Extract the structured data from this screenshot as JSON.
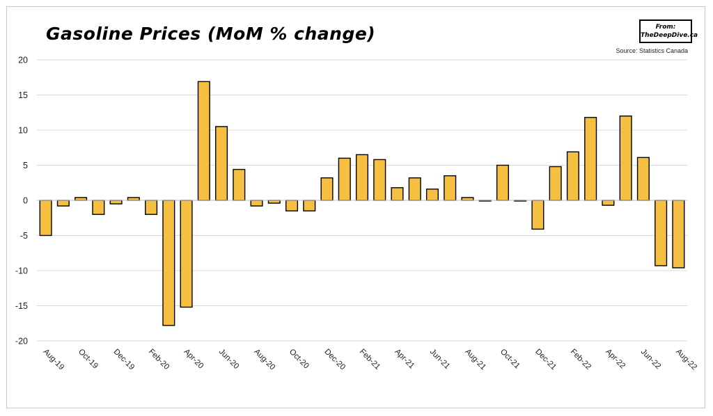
{
  "title": "Gasoline Prices (MoM % change)",
  "logo": {
    "line1": "From:",
    "line2": "TheDeepDive.ca"
  },
  "source": "Source: Statistics Canada",
  "colors": {
    "bar": "#f5bf42",
    "bar_stroke": "#000000",
    "grid": "#d9d9d9"
  },
  "chart_data": {
    "type": "bar",
    "title": "Gasoline Prices (MoM % change)",
    "ylim": [
      -20,
      20
    ],
    "yticks": [
      -20,
      -15,
      -10,
      -5,
      0,
      5,
      10,
      15,
      20
    ],
    "grid": true,
    "legend": "none",
    "categories": [
      "Aug-19",
      "Sep-19",
      "Oct-19",
      "Nov-19",
      "Dec-19",
      "Jan-20",
      "Feb-20",
      "Mar-20",
      "Apr-20",
      "May-20",
      "Jun-20",
      "Jul-20",
      "Aug-20",
      "Sep-20",
      "Oct-20",
      "Nov-20",
      "Dec-20",
      "Jan-21",
      "Feb-21",
      "Mar-21",
      "Apr-21",
      "May-21",
      "Jun-21",
      "Jul-21",
      "Aug-21",
      "Sep-21",
      "Oct-21",
      "Nov-21",
      "Dec-21",
      "Jan-22",
      "Feb-22",
      "Mar-22",
      "Apr-22",
      "May-22",
      "Jun-22",
      "Jul-22",
      "Aug-22"
    ],
    "tick_labels": [
      "Aug-19",
      "Oct-19",
      "Dec-19",
      "Feb-20",
      "Apr-20",
      "Jun-20",
      "Aug-20",
      "Oct-20",
      "Dec-20",
      "Feb-21",
      "Apr-21",
      "Jun-21",
      "Aug-21",
      "Oct-21",
      "Dec-21",
      "Feb-22",
      "Apr-22",
      "Jun-22",
      "Aug-22"
    ],
    "values": [
      -5.0,
      -0.8,
      0.4,
      -2.0,
      -0.5,
      0.4,
      -2.0,
      -17.8,
      -15.2,
      16.9,
      10.5,
      4.4,
      -0.8,
      -0.4,
      -1.5,
      -1.5,
      3.2,
      6.0,
      6.5,
      5.8,
      1.8,
      3.2,
      1.6,
      3.5,
      0.4,
      -0.1,
      5.0,
      -0.1,
      -4.1,
      4.8,
      6.9,
      11.8,
      -0.7,
      12.0,
      6.1,
      -9.3,
      -9.6
    ]
  }
}
